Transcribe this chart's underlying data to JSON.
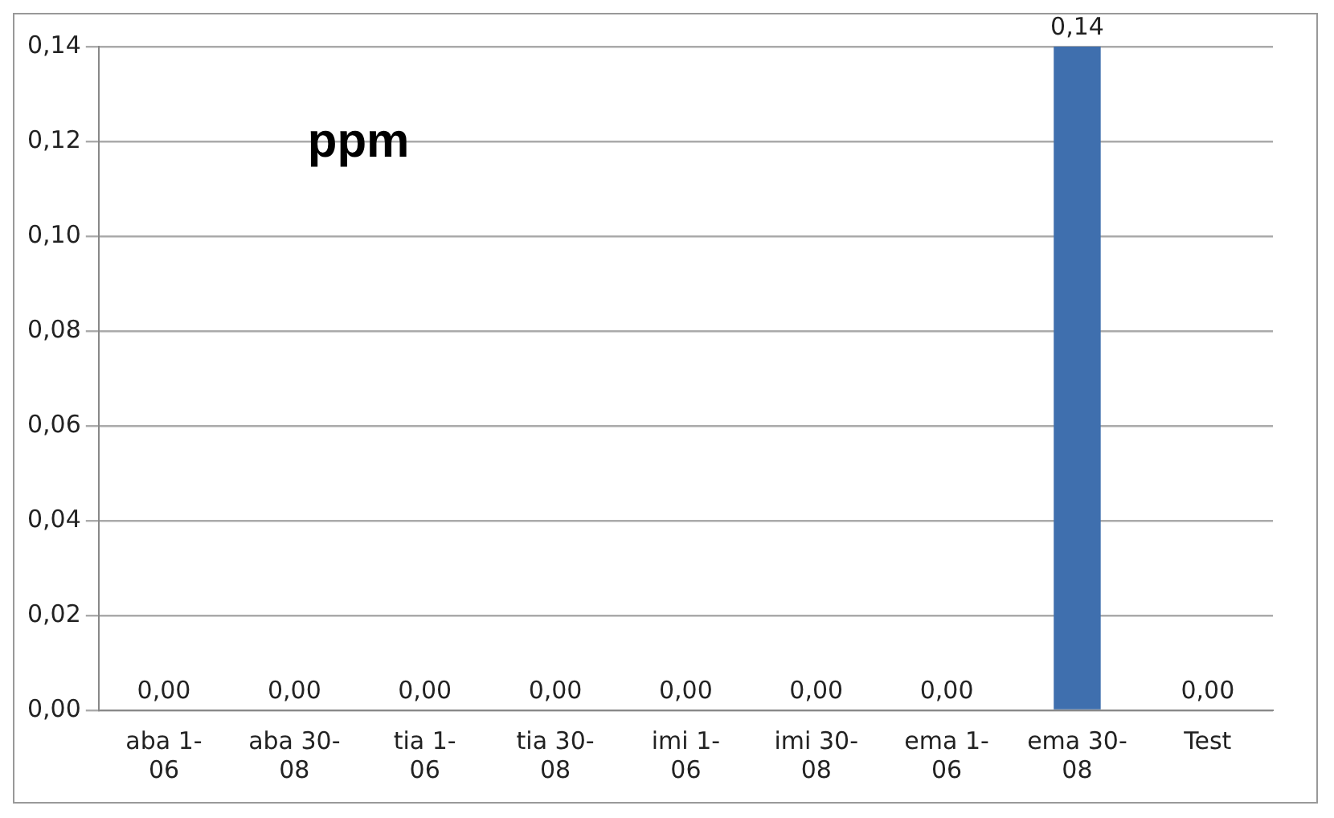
{
  "chart_data": {
    "type": "bar",
    "title": "ppm",
    "categories": [
      "aba 1-06",
      "aba 30-08",
      "tia 1-06",
      "tia 30-08",
      "imi 1-06",
      "imi 30-08",
      "ema 1-06",
      "ema 30-08",
      "Test"
    ],
    "values": [
      0,
      0,
      0,
      0,
      0,
      0,
      0,
      0.14,
      0
    ],
    "value_labels": [
      "0,00",
      "0,00",
      "0,00",
      "0,00",
      "0,00",
      "0,00",
      "0,00",
      "0,14",
      "0,00"
    ],
    "color": "#3f6fae",
    "ylim": [
      0,
      0.14
    ],
    "yticks": [
      {
        "value": 0,
        "label": "0,00"
      },
      {
        "value": 0.02,
        "label": "0,02"
      },
      {
        "value": 0.04,
        "label": "0,04"
      },
      {
        "value": 0.06,
        "label": "0,06"
      },
      {
        "value": 0.08,
        "label": "0,08"
      },
      {
        "value": 0.1,
        "label": "0,10"
      },
      {
        "value": 0.12,
        "label": "0,12"
      },
      {
        "value": 0.14,
        "label": "0,14"
      }
    ],
    "grid": "y",
    "legend": false
  }
}
